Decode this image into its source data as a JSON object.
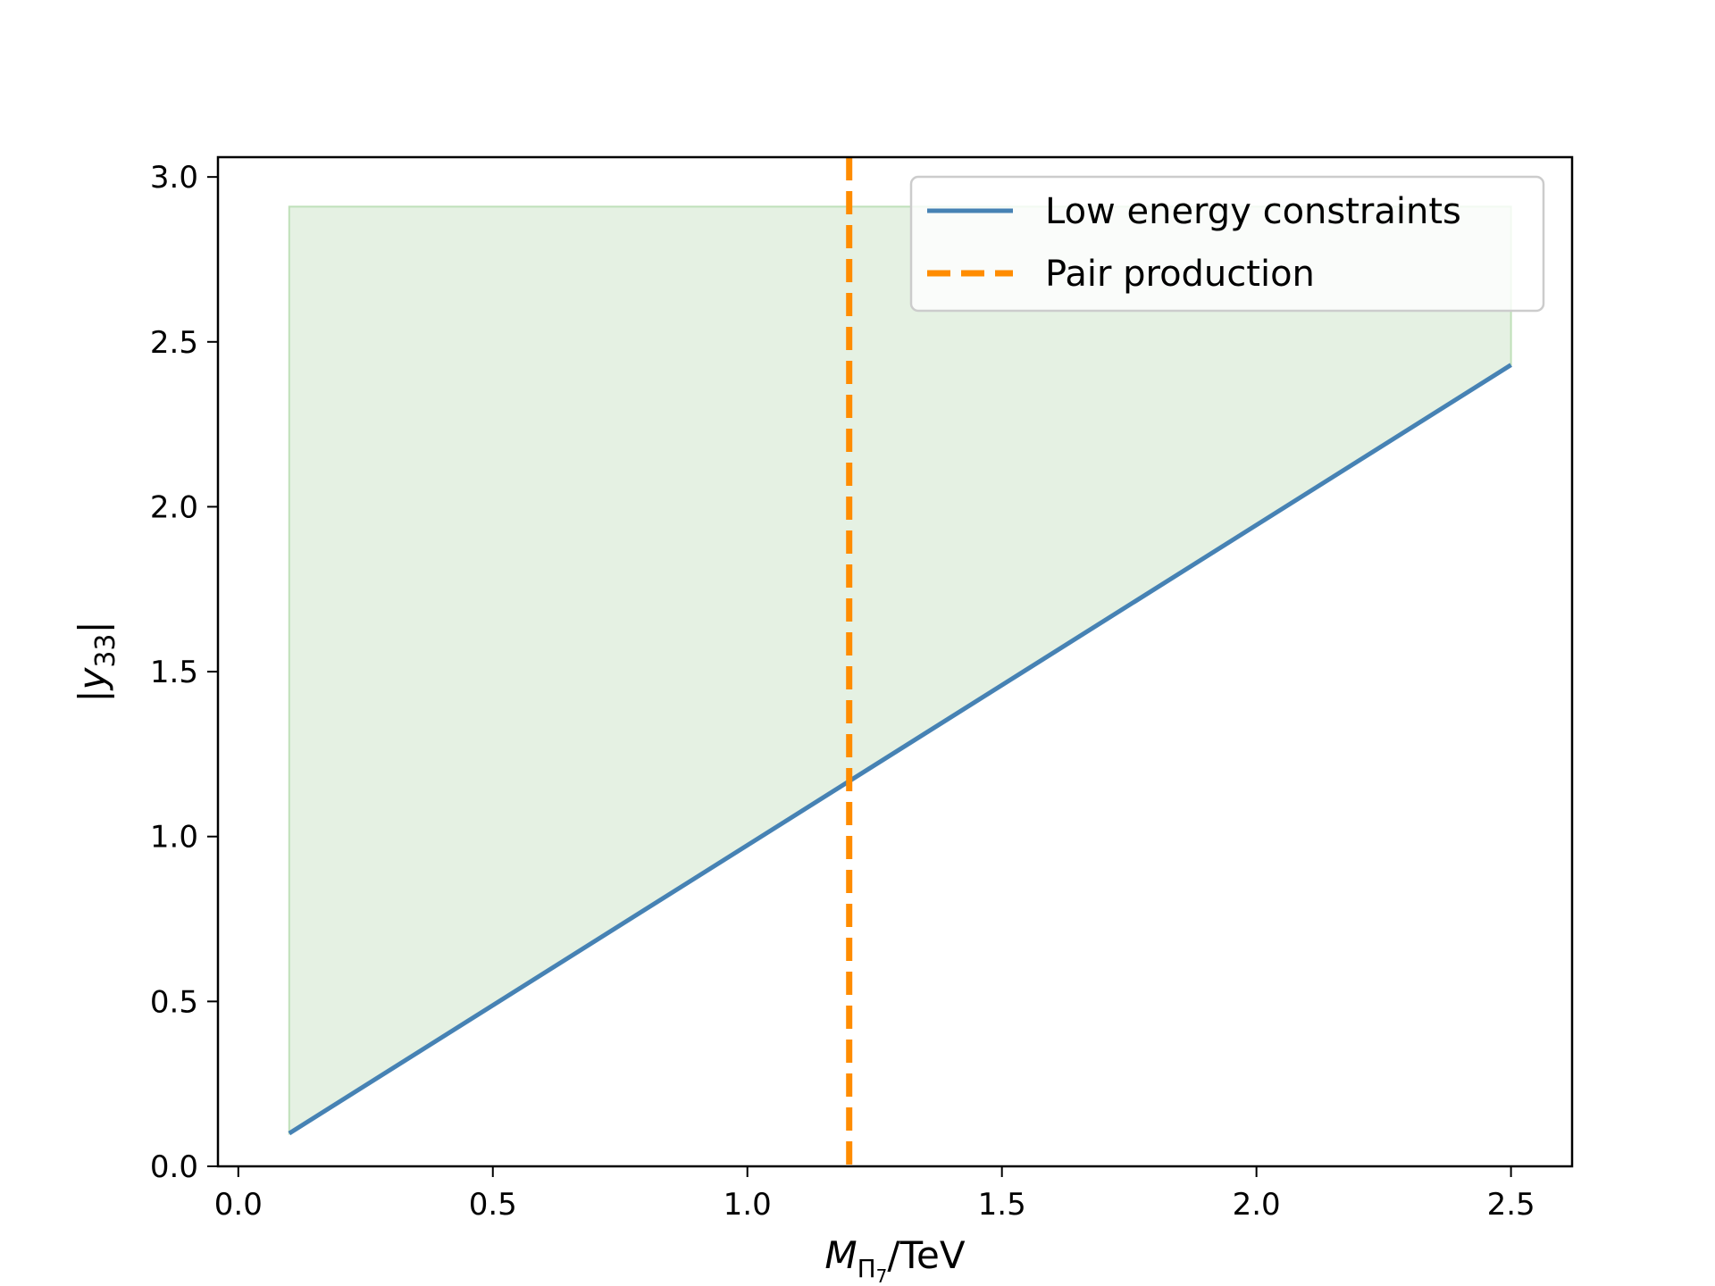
{
  "chart_data": {
    "type": "line",
    "title": "",
    "xlabel": "M_{Π7}/TeV",
    "xlabel_parts": {
      "main": "M",
      "sub": "Π",
      "subsub": "7",
      "suffix": "/TeV"
    },
    "ylabel": "|y33|",
    "ylabel_parts": {
      "open": "|",
      "main": "y",
      "sub": "33",
      "close": "|"
    },
    "xlim": [
      -0.04,
      2.62
    ],
    "ylim": [
      0.0,
      3.06
    ],
    "xticks": [
      0.0,
      0.5,
      1.0,
      1.5,
      2.0,
      2.5
    ],
    "xtick_labels": [
      "0.0",
      "0.5",
      "1.0",
      "1.5",
      "2.0",
      "2.5"
    ],
    "yticks": [
      0.0,
      0.5,
      1.0,
      1.5,
      2.0,
      2.5,
      3.0
    ],
    "ytick_labels": [
      "0.0",
      "0.5",
      "1.0",
      "1.5",
      "2.0",
      "2.5",
      "3.0"
    ],
    "grid": false,
    "legend": "upper right",
    "series": [
      {
        "name": "Low energy constraints",
        "style": "solid",
        "color": "#4682b4",
        "x": [
          0.1,
          2.5
        ],
        "y": [
          0.1,
          2.43
        ]
      },
      {
        "name": "Pair production",
        "style": "dashed",
        "color": "#ff8c00",
        "vertical_x": 1.2
      }
    ],
    "fill_region": {
      "color": "#e5f1e3",
      "edge_color": "#bfe0b9",
      "x": [
        0.1,
        2.5
      ],
      "lower": [
        0.1,
        2.43
      ],
      "upper": 2.91
    }
  }
}
